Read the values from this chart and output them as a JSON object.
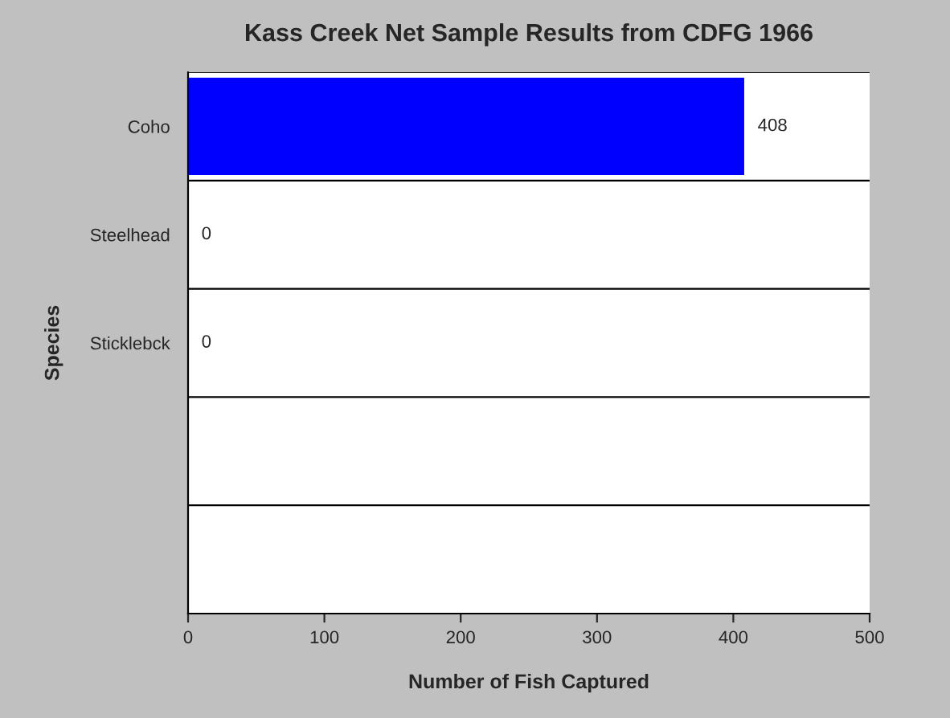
{
  "chart_data": {
    "type": "bar",
    "orientation": "horizontal",
    "title": "Kass Creek Net Sample Results from CDFG 1966",
    "xlabel": "Number of Fish Captured",
    "ylabel": "Species",
    "categories": [
      "Coho",
      "Steelhead",
      "Sticklebck",
      null,
      null
    ],
    "series": [
      {
        "color": "#0000ff",
        "values": [
          408,
          0,
          0,
          null,
          null
        ]
      }
    ],
    "xlim": [
      0,
      500
    ],
    "xticks": [
      0,
      100,
      200,
      300,
      400,
      500
    ],
    "grid": "y",
    "data_labels": true,
    "legend": false
  }
}
